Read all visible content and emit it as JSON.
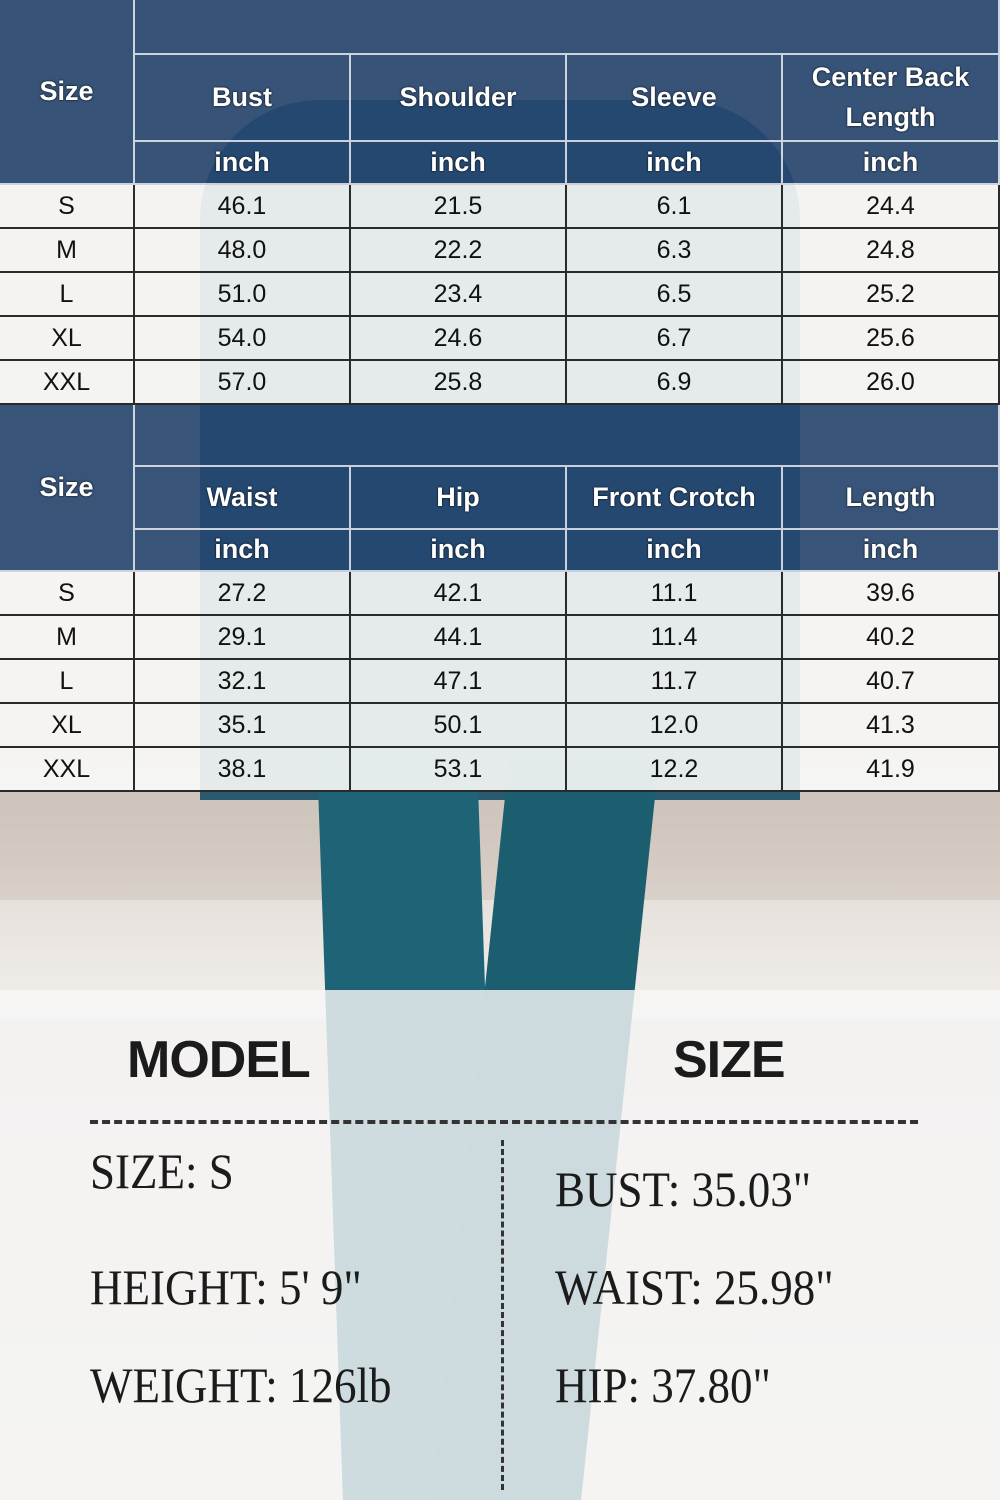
{
  "colors": {
    "header": "#244670",
    "row": "#fafaf8"
  },
  "top_table": {
    "size_label": "Size",
    "columns": [
      {
        "name": "Bust",
        "unit": "inch"
      },
      {
        "name": "Shoulder",
        "unit": "inch"
      },
      {
        "name": "Sleeve",
        "unit": "inch"
      },
      {
        "name": "Center Back Length",
        "unit": "inch"
      }
    ],
    "rows": [
      {
        "size": "S",
        "values": [
          "46.1",
          "21.5",
          "6.1",
          "24.4"
        ]
      },
      {
        "size": "M",
        "values": [
          "48.0",
          "22.2",
          "6.3",
          "24.8"
        ]
      },
      {
        "size": "L",
        "values": [
          "51.0",
          "23.4",
          "6.5",
          "25.2"
        ]
      },
      {
        "size": "XL",
        "values": [
          "54.0",
          "24.6",
          "6.7",
          "25.6"
        ]
      },
      {
        "size": "XXL",
        "values": [
          "57.0",
          "25.8",
          "6.9",
          "26.0"
        ]
      }
    ]
  },
  "bottom_table": {
    "size_label": "Size",
    "columns": [
      {
        "name": "Waist",
        "unit": "inch"
      },
      {
        "name": "Hip",
        "unit": "inch"
      },
      {
        "name": "Front Crotch",
        "unit": "inch"
      },
      {
        "name": "Length",
        "unit": "inch"
      }
    ],
    "rows": [
      {
        "size": "S",
        "values": [
          "27.2",
          "42.1",
          "11.1",
          "39.6"
        ]
      },
      {
        "size": "M",
        "values": [
          "29.1",
          "44.1",
          "11.4",
          "40.2"
        ]
      },
      {
        "size": "L",
        "values": [
          "32.1",
          "47.1",
          "11.7",
          "40.7"
        ]
      },
      {
        "size": "XL",
        "values": [
          "35.1",
          "50.1",
          "12.0",
          "41.3"
        ]
      },
      {
        "size": "XXL",
        "values": [
          "38.1",
          "53.1",
          "12.2",
          "41.9"
        ]
      }
    ]
  },
  "model": {
    "title_left": "MODEL",
    "title_right": "SIZE",
    "left": [
      "SIZE: S",
      "HEIGHT: 5' 9\"",
      "WEIGHT: 126lb"
    ],
    "right": [
      "BUST: 35.03\"",
      "WAIST:  25.98\"",
      "HIP: 37.80\""
    ]
  }
}
